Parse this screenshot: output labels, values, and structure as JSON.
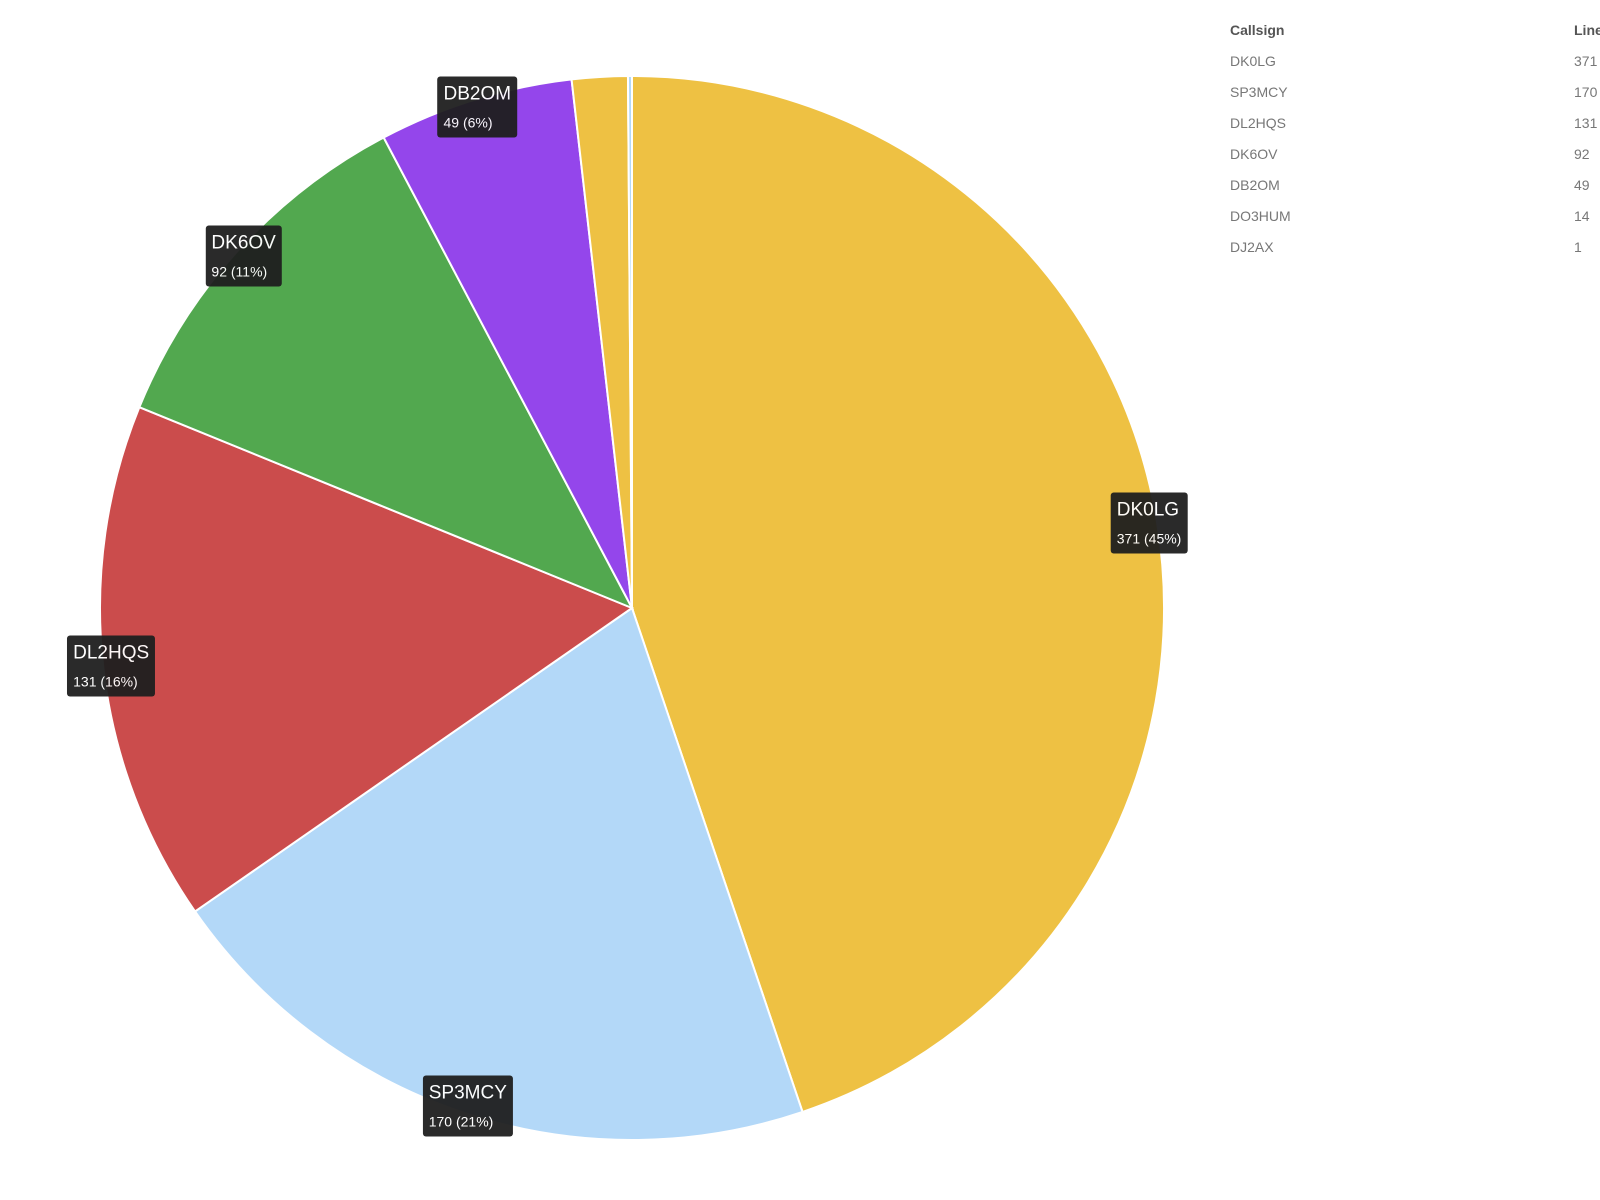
{
  "chart_data": {
    "type": "pie",
    "slices": [
      {
        "label": "DK0LG",
        "value": 371,
        "percent_label": "371 (45%)",
        "color": "#EEC143"
      },
      {
        "label": "SP3MCY",
        "value": 170,
        "percent_label": "170 (21%)",
        "color": "#B3D8F8"
      },
      {
        "label": "DL2HQS",
        "value": 131,
        "percent_label": "131 (16%)",
        "color": "#CB4C4C"
      },
      {
        "label": "DK6OV",
        "value": 92,
        "percent_label": "92 (11%)",
        "color": "#52A84F"
      },
      {
        "label": "DB2OM",
        "value": 49,
        "percent_label": "49 (6%)",
        "color": "#9446EB"
      },
      {
        "label": "DO3HUM",
        "value": 14,
        "color": "#EEC143"
      },
      {
        "label": "DJ2AX",
        "value": 1,
        "color": "#B3D8F8"
      }
    ]
  },
  "table": {
    "headers": {
      "callsign": "Callsign",
      "lines": "Lines"
    },
    "rows": [
      {
        "callsign": "DK0LG",
        "lines": "371"
      },
      {
        "callsign": "SP3MCY",
        "lines": "170"
      },
      {
        "callsign": "DL2HQS",
        "lines": "131"
      },
      {
        "callsign": "DK6OV",
        "lines": "92"
      },
      {
        "callsign": "DB2OM",
        "lines": "49"
      },
      {
        "callsign": "DO3HUM",
        "lines": "14"
      },
      {
        "callsign": "DJ2AX",
        "lines": "1"
      }
    ]
  }
}
